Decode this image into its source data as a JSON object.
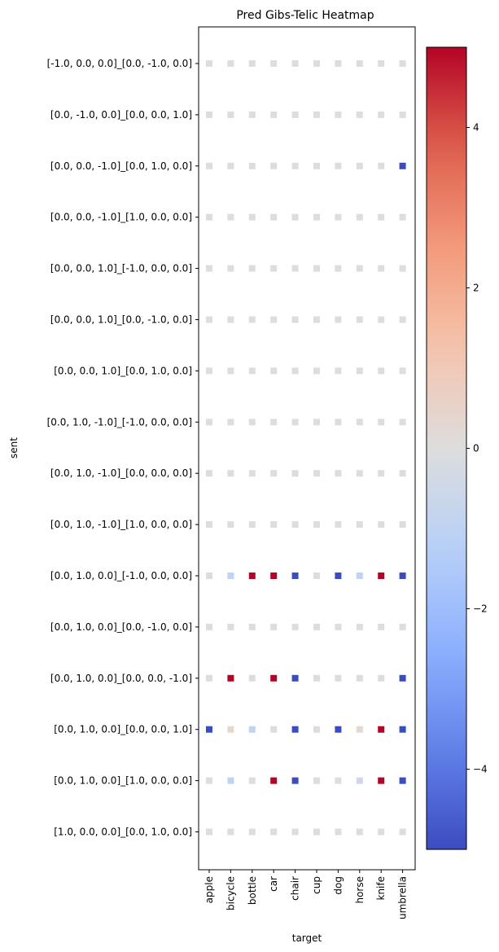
{
  "chart_data": {
    "type": "heatmap",
    "title": "Pred Gibs-Telic Heatmap",
    "xlabel": "target",
    "ylabel": "sent",
    "x_categories": [
      "apple",
      "bicycle",
      "bottle",
      "car",
      "chair",
      "cup",
      "dog",
      "horse",
      "knife",
      "umbrella"
    ],
    "y_categories": [
      "[-1.0, 0.0, 0.0]_[0.0, -1.0, 0.0]",
      "[0.0, -1.0, 0.0]_[0.0, 0.0, 1.0]",
      "[0.0, 0.0, -1.0]_[0.0, 1.0, 0.0]",
      "[0.0, 0.0, -1.0]_[1.0, 0.0, 0.0]",
      "[0.0, 0.0, 1.0]_[-1.0, 0.0, 0.0]",
      "[0.0, 0.0, 1.0]_[0.0, -1.0, 0.0]",
      "[0.0, 0.0, 1.0]_[0.0, 1.0, 0.0]",
      "[0.0, 1.0, -1.0]_[-1.0, 0.0, 0.0]",
      "[0.0, 1.0, -1.0]_[0.0, 0.0, 0.0]",
      "[0.0, 1.0, -1.0]_[1.0, 0.0, 0.0]",
      "[0.0, 1.0, 0.0]_[-1.0, 0.0, 0.0]",
      "[0.0, 1.0, 0.0]_[0.0, -1.0, 0.0]",
      "[0.0, 1.0, 0.0]_[0.0, 0.0, -1.0]",
      "[0.0, 1.0, 0.0]_[0.0, 0.0, 1.0]",
      "[0.0, 1.0, 0.0]_[1.0, 0.0, 0.0]",
      "[1.0, 0.0, 0.0]_[0.0, 1.0, 0.0]"
    ],
    "values": [
      [
        0,
        0,
        0,
        0,
        0,
        0,
        0,
        0,
        0,
        0
      ],
      [
        0,
        0,
        0,
        0,
        0,
        0,
        0,
        0,
        0,
        0
      ],
      [
        0,
        0,
        0,
        0,
        0,
        0,
        0,
        0,
        0,
        -5
      ],
      [
        0,
        0,
        0,
        0,
        0,
        0,
        0,
        0,
        0,
        0
      ],
      [
        0,
        0,
        0,
        0,
        0,
        0,
        0,
        0,
        0,
        0
      ],
      [
        0,
        0,
        0,
        0,
        0,
        0,
        0,
        0,
        0,
        0
      ],
      [
        0,
        0,
        0,
        0,
        0,
        0,
        0,
        0,
        0,
        0
      ],
      [
        0,
        0,
        0,
        0,
        0,
        0,
        0,
        0,
        0,
        0
      ],
      [
        0,
        0,
        0,
        0,
        0,
        0,
        0,
        0,
        0,
        0
      ],
      [
        0,
        0,
        0,
        0,
        0,
        0,
        0,
        0,
        0,
        0
      ],
      [
        0,
        -1,
        5,
        5,
        -5,
        0,
        -5,
        -1,
        5,
        -5
      ],
      [
        0,
        0,
        0,
        0,
        0,
        0,
        0,
        0,
        0,
        0
      ],
      [
        0,
        5,
        0,
        5,
        -5,
        0,
        0,
        0,
        0,
        -5
      ],
      [
        -5,
        0.3,
        -1,
        0,
        -5,
        0,
        -5,
        0.3,
        5,
        -5
      ],
      [
        0,
        -1,
        0,
        5,
        -5,
        0,
        0,
        -0.5,
        5,
        -5
      ],
      [
        0,
        0,
        0,
        0,
        0,
        0,
        0,
        0,
        0,
        0
      ]
    ],
    "colormap": "coolwarm",
    "colorbar": {
      "vmin": -5,
      "vmax": 5,
      "ticks": [
        4,
        2,
        0,
        -2,
        -4
      ],
      "tick_labels": [
        "4",
        "2",
        "0",
        "−2",
        "−4"
      ]
    },
    "grid": false,
    "colors": {
      "low": "#3b4cc0",
      "mid": "#dddddd",
      "high": "#b40426"
    }
  }
}
